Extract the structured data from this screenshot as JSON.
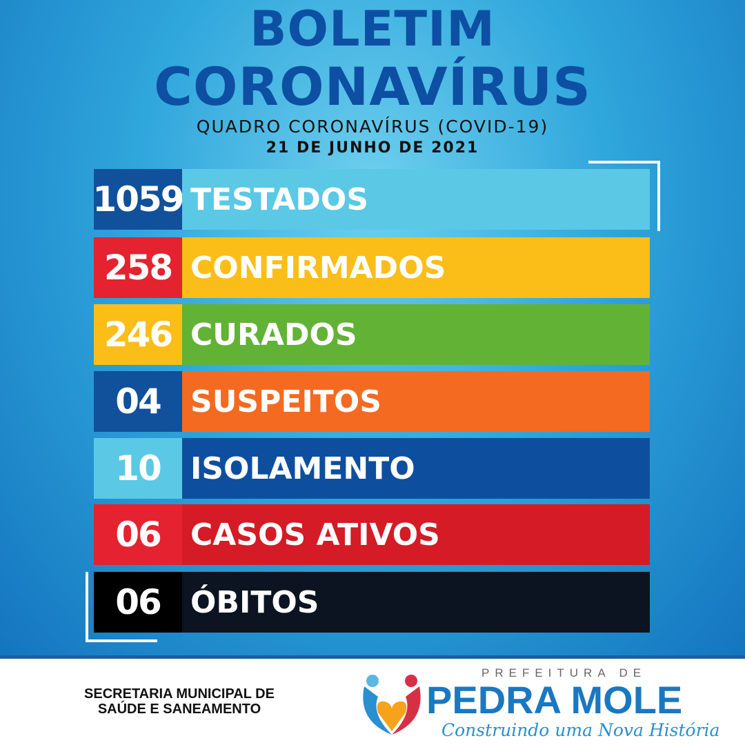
{
  "header": {
    "title_line1": "BOLETIM",
    "title_line2": "CORONAVÍRUS",
    "subtitle": "QUADRO CORONAVÍRUS (COVID-19)",
    "date": "21 DE JUNHO DE 2021"
  },
  "rows": [
    {
      "value": "1059",
      "label": "TESTADOS",
      "num_color": "#11509b",
      "bar_color": "#5bc8e6"
    },
    {
      "value": "258",
      "label": "CONFIRMADOS",
      "num_color": "#e52230",
      "bar_color": "#fbbd18"
    },
    {
      "value": "246",
      "label": "CURADOS",
      "num_color": "#fbbd18",
      "bar_color": "#62b236"
    },
    {
      "value": "04",
      "label": "SUSPEITOS",
      "num_color": "#11509b",
      "bar_color": "#f46a20"
    },
    {
      "value": "10",
      "label": "ISOLAMENTO",
      "num_color": "#5bc8e6",
      "bar_color": "#0d4f9e"
    },
    {
      "value": "06",
      "label": "CASOS ATIVOS",
      "num_color": "#e52230",
      "bar_color": "#d41b26"
    },
    {
      "value": "06",
      "label": "ÓBITOS",
      "num_color": "#000000",
      "bar_color": "#0b1420"
    }
  ],
  "footer": {
    "secretaria_line1": "SECRETARIA MUNICIPAL DE",
    "secretaria_line2": "SAÚDE E SANEAMENTO",
    "logo_prefix": "PREFEITURA DE",
    "logo_name": "PEDRA MOLE",
    "logo_slogan": "Construindo uma Nova História"
  }
}
